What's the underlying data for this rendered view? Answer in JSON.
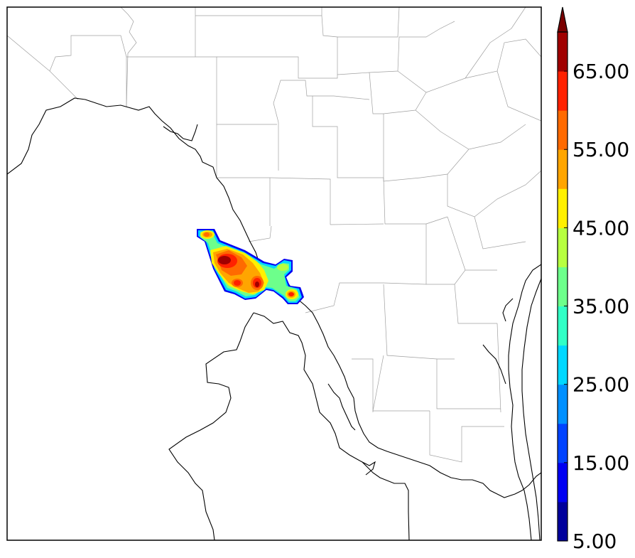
{
  "map": {
    "type": "radar-reflectivity-map",
    "background_color": "#ffffff",
    "county_line_color": "#a0a0a0",
    "border_line_color": "#000000"
  },
  "colorbar": {
    "orientation": "vertical",
    "min": 5,
    "max": 70,
    "step": 5,
    "extend": "max",
    "tick_labels": [
      "5.00",
      "15.00",
      "25.00",
      "35.00",
      "45.00",
      "55.00",
      "65.00"
    ],
    "colors": [
      "#00009c",
      "#0000f2",
      "#0043ff",
      "#0090ff",
      "#00d8ff",
      "#31ffc6",
      "#6dff8b",
      "#b7ff40",
      "#fff000",
      "#ffa500",
      "#ff6a00",
      "#ff2100",
      "#a00000"
    ],
    "extend_color": "#7a0000"
  }
}
